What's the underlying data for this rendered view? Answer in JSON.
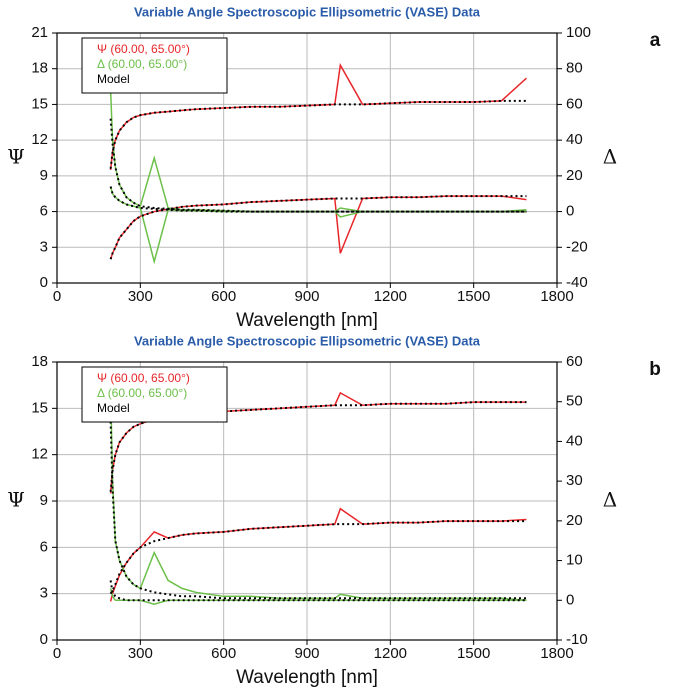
{
  "chart_data": [
    {
      "type": "line",
      "title": "Variable Angle Spectroscopic Ellipsometric (VASE) Data",
      "panel_label": "a",
      "x_label": "Wavelength [nm]",
      "y_label": "Ψ",
      "y2_label": "Δ",
      "xlim": [
        0,
        1800
      ],
      "xticks": [
        0,
        300,
        600,
        900,
        1200,
        1500,
        1800
      ],
      "ylim": [
        0,
        21
      ],
      "yticks": [
        0,
        3,
        6,
        9,
        12,
        15,
        18,
        21
      ],
      "y2lim": [
        -40,
        100
      ],
      "y2ticks": [
        -40,
        -20,
        0,
        20,
        40,
        60,
        80,
        100
      ],
      "grid": true,
      "legend": "upper left",
      "x": [
        193,
        200,
        210,
        225,
        250,
        275,
        300,
        350,
        400,
        450,
        500,
        600,
        700,
        800,
        900,
        1000,
        1020,
        1100,
        1200,
        1300,
        1400,
        1500,
        1600,
        1690
      ],
      "series": [
        {
          "name": "Ψ (60.00, 65.00°)",
          "color": "#e8262a",
          "line_style": "solid",
          "curves": [
            {
              "axis": "y",
              "values": [
                9.5,
                11,
                12,
                12.8,
                13.5,
                13.9,
                14.1,
                14.3,
                14.4,
                14.5,
                14.6,
                14.7,
                14.8,
                14.8,
                14.9,
                15,
                18.3,
                15,
                15.1,
                15.2,
                15.2,
                15.2,
                15.3,
                17.2
              ]
            },
            {
              "axis": "y",
              "values": [
                2,
                2.5,
                3,
                3.8,
                4.5,
                5.2,
                5.6,
                6,
                6.2,
                6.4,
                6.5,
                6.6,
                6.8,
                6.9,
                7,
                7.1,
                2.5,
                7.1,
                7.2,
                7.2,
                7.3,
                7.3,
                7.3,
                7
              ]
            }
          ]
        },
        {
          "name": "Δ (60.00, 65.00°)",
          "color": "#6cc04a",
          "line_style": "solid",
          "curves": [
            {
              "axis": "y2",
              "values": [
                68,
                40,
                25,
                15,
                8,
                5,
                3,
                30,
                2,
                1,
                1,
                0.5,
                0,
                0,
                0,
                0,
                -3,
                0,
                0,
                0,
                0,
                0,
                0,
                1
              ]
            },
            {
              "axis": "y2",
              "values": [
                14,
                10,
                8,
                6,
                4,
                3,
                2,
                -28,
                1,
                0.5,
                0.5,
                0,
                0,
                0,
                0,
                0,
                2,
                0,
                0,
                0,
                0,
                0,
                0,
                0
              ]
            }
          ]
        },
        {
          "name": "Model",
          "color": "#000000",
          "line_style": "dotted",
          "curves": [
            {
              "axis": "y",
              "values": [
                9.6,
                11,
                12,
                12.8,
                13.5,
                13.9,
                14.1,
                14.3,
                14.4,
                14.5,
                14.6,
                14.7,
                14.8,
                14.8,
                14.9,
                15,
                15,
                15,
                15.1,
                15.2,
                15.2,
                15.2,
                15.3,
                15.3
              ]
            },
            {
              "axis": "y",
              "values": [
                2,
                2.5,
                3,
                3.8,
                4.5,
                5.2,
                5.6,
                6,
                6.2,
                6.4,
                6.5,
                6.6,
                6.8,
                6.9,
                7,
                7.1,
                7.1,
                7.1,
                7.2,
                7.2,
                7.3,
                7.3,
                7.3,
                7.3
              ]
            },
            {
              "axis": "y2",
              "values": [
                52,
                38,
                25,
                15,
                8,
                5,
                3,
                2,
                1.5,
                1,
                1,
                0.5,
                0,
                0,
                0,
                0,
                0,
                0,
                0,
                0,
                0,
                0,
                0,
                0
              ]
            },
            {
              "axis": "y2",
              "values": [
                14,
                10,
                8,
                6,
                4,
                3,
                2,
                1.5,
                1,
                0.5,
                0.5,
                0,
                0,
                0,
                0,
                0,
                0,
                0,
                0,
                0,
                0,
                0,
                0,
                0
              ]
            }
          ]
        }
      ]
    },
    {
      "type": "line",
      "title": "Variable Angle Spectroscopic Ellipsometric (VASE) Data",
      "panel_label": "b",
      "x_label": "Wavelength [nm]",
      "y_label": "Ψ",
      "y2_label": "Δ",
      "xlim": [
        0,
        1800
      ],
      "xticks": [
        0,
        300,
        600,
        900,
        1200,
        1500,
        1800
      ],
      "ylim": [
        0,
        18
      ],
      "yticks": [
        0,
        3,
        6,
        9,
        12,
        15,
        18
      ],
      "y2lim": [
        -10,
        60
      ],
      "y2ticks": [
        -10,
        0,
        10,
        20,
        30,
        40,
        50,
        60
      ],
      "grid": true,
      "legend": "upper left",
      "x": [
        193,
        200,
        210,
        225,
        250,
        275,
        300,
        350,
        400,
        450,
        500,
        600,
        700,
        800,
        900,
        1000,
        1020,
        1100,
        1200,
        1300,
        1400,
        1500,
        1600,
        1690
      ],
      "series": [
        {
          "name": "Ψ (60.00, 65.00°)",
          "color": "#e8262a",
          "line_style": "solid",
          "curves": [
            {
              "axis": "y",
              "values": [
                9.5,
                11,
                12,
                12.8,
                13.4,
                13.8,
                14,
                14.3,
                14.5,
                14.6,
                14.7,
                14.8,
                14.9,
                15,
                15.1,
                15.2,
                16,
                15.2,
                15.3,
                15.3,
                15.3,
                15.4,
                15.4,
                15.4
              ]
            },
            {
              "axis": "y",
              "values": [
                2.5,
                3,
                3.5,
                4.2,
                5,
                5.6,
                6,
                7,
                6.6,
                6.8,
                6.9,
                7,
                7.2,
                7.3,
                7.4,
                7.5,
                8.5,
                7.5,
                7.6,
                7.6,
                7.7,
                7.7,
                7.7,
                7.8
              ]
            }
          ]
        },
        {
          "name": "Δ (60.00, 65.00°)",
          "color": "#6cc04a",
          "line_style": "solid",
          "curves": [
            {
              "axis": "y2",
              "values": [
                54,
                30,
                15,
                10,
                6,
                4,
                3,
                12,
                5,
                3,
                2,
                1,
                1,
                0.5,
                0.5,
                0.5,
                1.5,
                0.5,
                0.5,
                0.5,
                0.5,
                0.5,
                0.5,
                0
              ]
            },
            {
              "axis": "y2",
              "values": [
                3,
                1,
                0,
                0,
                0,
                0,
                0,
                -1,
                0,
                0,
                0,
                0,
                0,
                0,
                0,
                0,
                0,
                0,
                0,
                0,
                0,
                0,
                0,
                0
              ]
            }
          ]
        },
        {
          "name": "Model",
          "color": "#000000",
          "line_style": "dotted",
          "curves": [
            {
              "axis": "y",
              "values": [
                9.6,
                11,
                12,
                12.8,
                13.4,
                13.8,
                14,
                14.3,
                14.5,
                14.6,
                14.7,
                14.8,
                14.9,
                15,
                15.1,
                15.2,
                15.2,
                15.2,
                15.3,
                15.3,
                15.3,
                15.4,
                15.4,
                15.4
              ]
            },
            {
              "axis": "y",
              "values": [
                3,
                3.2,
                3.6,
                4.3,
                5,
                5.6,
                6,
                6.4,
                6.6,
                6.8,
                6.9,
                7,
                7.2,
                7.3,
                7.4,
                7.5,
                7.5,
                7.5,
                7.6,
                7.6,
                7.7,
                7.7,
                7.7,
                7.7
              ]
            },
            {
              "axis": "y2",
              "values": [
                45,
                28,
                15,
                10,
                6,
                4,
                3,
                2,
                1.5,
                1,
                1,
                0.5,
                0.5,
                0.5,
                0.5,
                0.5,
                0.5,
                0.5,
                0.5,
                0.5,
                0.5,
                0.5,
                0.5,
                0.5
              ]
            },
            {
              "axis": "y2",
              "values": [
                5,
                2,
                1,
                0.5,
                0,
                0,
                0,
                0,
                0,
                0,
                0,
                0,
                0,
                0,
                0,
                0,
                0,
                0,
                0,
                0,
                0,
                0,
                0,
                0
              ]
            }
          ]
        }
      ]
    }
  ]
}
